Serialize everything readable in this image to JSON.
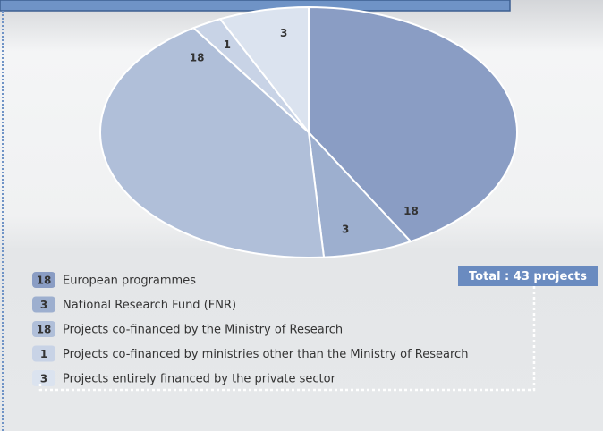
{
  "chart_data": {
    "type": "pie",
    "categories": [
      "European programmes",
      "National Research Fund (FNR)",
      "Projects co-financed by the Ministry of Research",
      "Projects co-financed by ministries other than the Ministry of Research",
      "Projects entirely financed by the private sector"
    ],
    "values": [
      18,
      3,
      18,
      1,
      3
    ],
    "colors": [
      "#8a9dc4",
      "#9dafcf",
      "#b0bfd9",
      "#c8d3e6",
      "#dbe3ef"
    ],
    "annotation": "Total : 43 projects"
  }
}
